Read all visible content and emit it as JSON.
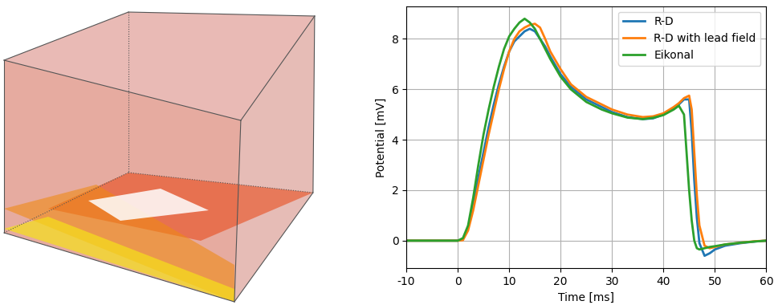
{
  "chart_data": {
    "type": "line",
    "xlabel": "Time [ms]",
    "ylabel": "Potential [mV]",
    "x": [
      -10,
      0,
      1,
      2,
      3,
      4,
      5,
      6,
      7,
      8,
      9,
      10,
      11,
      12,
      13,
      14,
      15,
      16,
      17,
      18,
      20,
      22,
      25,
      28,
      30,
      33,
      36,
      38,
      40,
      42,
      43,
      44,
      45,
      45.5,
      46,
      46.5,
      47,
      48,
      49,
      50,
      52,
      55,
      58,
      60
    ],
    "series": [
      {
        "name": "R-D",
        "color": "#1f77b4",
        "values": [
          0,
          0,
          0.05,
          0.5,
          1.4,
          2.5,
          3.5,
          4.5,
          5.4,
          6.2,
          6.9,
          7.5,
          7.9,
          8.1,
          8.3,
          8.4,
          8.3,
          8.0,
          7.7,
          7.3,
          6.6,
          6.1,
          5.6,
          5.3,
          5.1,
          4.9,
          4.82,
          4.85,
          5.0,
          5.25,
          5.4,
          5.6,
          5.6,
          4.3,
          2.4,
          0.9,
          -0.1,
          -0.6,
          -0.5,
          -0.35,
          -0.2,
          -0.1,
          -0.03,
          0
        ]
      },
      {
        "name": "R-D with lead field",
        "color": "#ff7f0e",
        "values": [
          0,
          0,
          0.02,
          0.4,
          1.2,
          2.2,
          3.2,
          4.2,
          5.1,
          6.0,
          6.8,
          7.5,
          8.0,
          8.3,
          8.45,
          8.55,
          8.6,
          8.45,
          8.0,
          7.5,
          6.8,
          6.2,
          5.7,
          5.4,
          5.2,
          5.0,
          4.9,
          4.93,
          5.05,
          5.3,
          5.45,
          5.65,
          5.75,
          5.2,
          3.5,
          1.8,
          0.6,
          -0.2,
          -0.3,
          -0.25,
          -0.15,
          -0.08,
          -0.02,
          0
        ]
      },
      {
        "name": "Eikonal",
        "color": "#2ca02c",
        "values": [
          0,
          0,
          0.1,
          0.6,
          1.7,
          3.0,
          4.2,
          5.2,
          6.1,
          6.9,
          7.6,
          8.1,
          8.4,
          8.65,
          8.8,
          8.65,
          8.4,
          8.0,
          7.6,
          7.2,
          6.5,
          6.0,
          5.5,
          5.2,
          5.05,
          4.88,
          4.82,
          4.87,
          4.98,
          5.2,
          5.35,
          5.0,
          2.0,
          0.8,
          0.0,
          -0.3,
          -0.35,
          -0.3,
          -0.25,
          -0.22,
          -0.15,
          -0.08,
          -0.03,
          0
        ]
      }
    ],
    "xlim": [
      -10,
      60
    ],
    "ylim": [
      -1.1,
      9.3
    ],
    "xticks": [
      -10,
      0,
      10,
      20,
      30,
      40,
      50,
      60
    ],
    "yticks": [
      0,
      2,
      4,
      6,
      8
    ],
    "grid": true,
    "legend": "upper right"
  }
}
